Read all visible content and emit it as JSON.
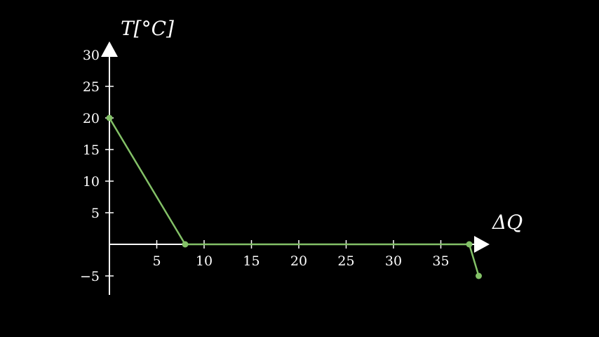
{
  "chart_data": {
    "type": "line",
    "xlabel": "ΔQ",
    "ylabel": "T[°C]",
    "xlim": [
      0,
      39
    ],
    "ylim": [
      -5,
      30
    ],
    "x_ticks": [
      5,
      10,
      15,
      20,
      25,
      30,
      35
    ],
    "y_ticks": [
      -5,
      5,
      10,
      15,
      20,
      25,
      30
    ],
    "x_tick_labels": [
      "5",
      "10",
      "15",
      "20",
      "25",
      "30",
      "35"
    ],
    "y_tick_labels": [
      "−5",
      "5",
      "10",
      "15",
      "20",
      "25",
      "30"
    ],
    "grid": false,
    "series": [
      {
        "color": "#83c167",
        "x": [
          0,
          8,
          38,
          39
        ],
        "y": [
          20,
          0,
          0,
          -5
        ]
      }
    ]
  },
  "colors": {
    "background": "#000000",
    "axis": "#ffffff",
    "series": "#83c167"
  }
}
